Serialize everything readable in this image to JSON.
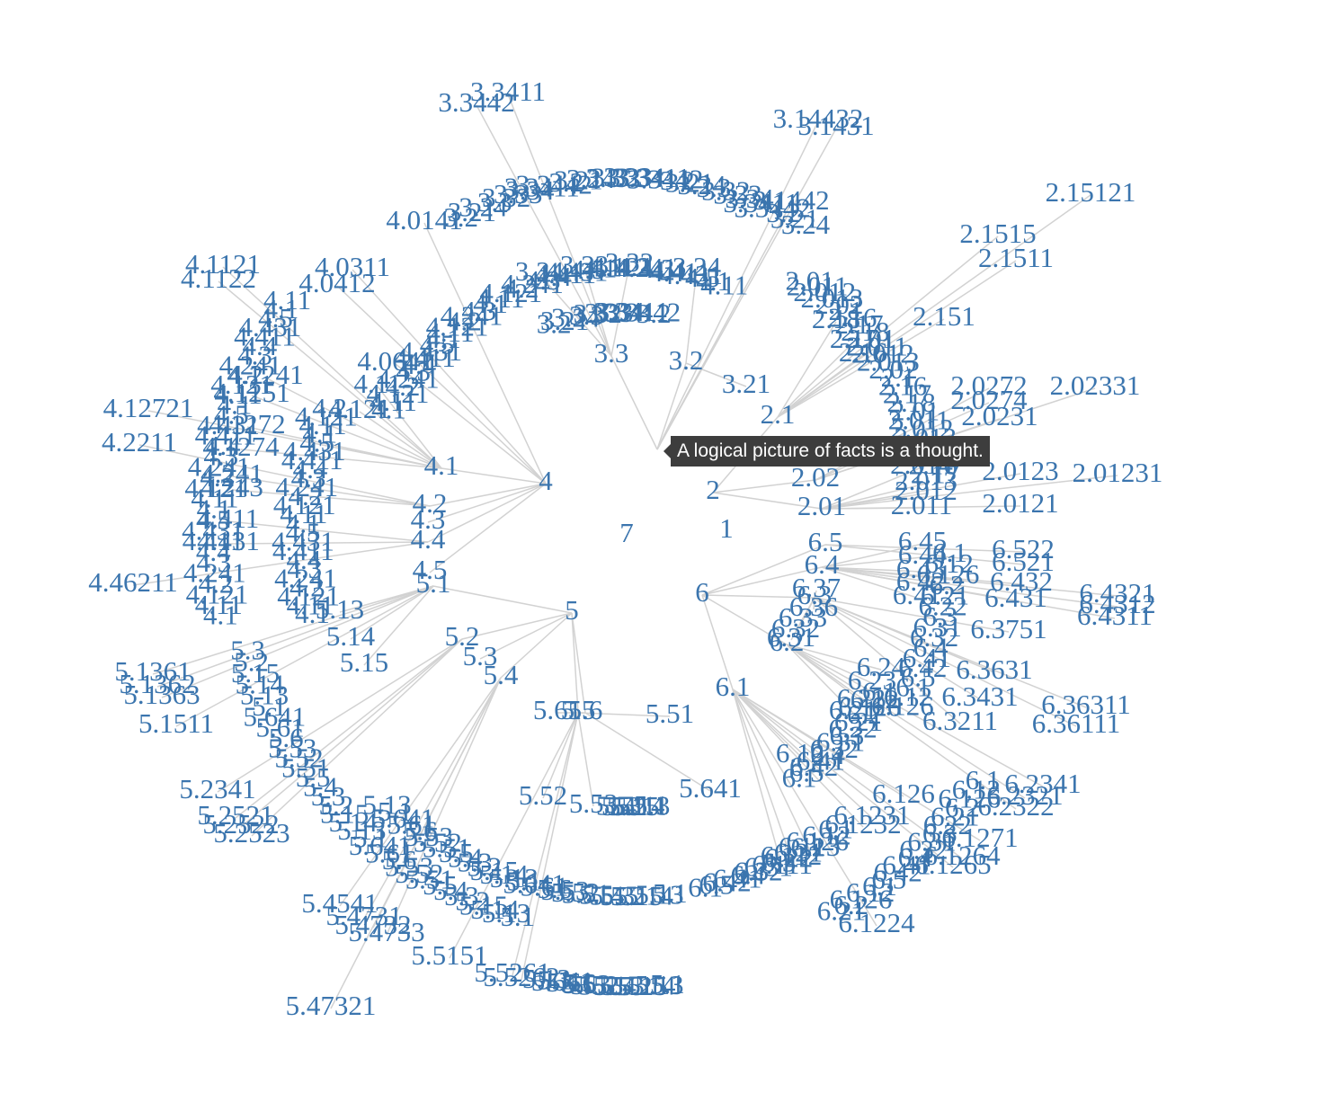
{
  "tooltip": {
    "text": "A logical picture of facts is a thought."
  },
  "colors": {
    "label": "#3b75ae",
    "edge": "#d2d2d2",
    "tooltip_bg": "#3d3d3d"
  },
  "tree": {
    "root": "7",
    "first_level": [
      "1",
      "2",
      "3",
      "4",
      "5",
      "6"
    ],
    "second_level": {
      "2": [
        "2.01",
        "2.02",
        "2.1"
      ],
      "3": [
        "3.2",
        "3.3"
      ],
      "4": [
        "4.1",
        "4.2",
        "4.3",
        "4.4",
        "4.5"
      ],
      "5": [
        "5.1",
        "5.2",
        "5.3",
        "5.4",
        "5.5",
        "5.6"
      ],
      "6": [
        "6.1",
        "6.2",
        "6.3",
        "6.4",
        "6.5"
      ]
    },
    "outer_labels": [
      "2.15121",
      "2.1515",
      "2.1511",
      "2.151",
      "2.02331",
      "2.0272",
      "2.0274",
      "2.0231",
      "2.0123",
      "2.0121",
      "2.01231",
      "2.011",
      "2.012",
      "2.013",
      "2.014",
      "2.16",
      "2.17",
      "2.18",
      "3.14432",
      "3.1431",
      "3.1442",
      "3.32",
      "3.33",
      "3.34",
      "3.24",
      "3.21",
      "3.3442",
      "3.3411",
      "4.0141",
      "4.0311",
      "4.0412",
      "4.0641",
      "4.1121",
      "4.1122",
      "4.11",
      "4.121",
      "4.12721",
      "4.2211",
      "4.241",
      "4.243",
      "4.411",
      "4.431",
      "4.46211",
      "4.1241",
      "4.1251",
      "4.1272",
      "4.1274",
      "5.1511",
      "5.1361",
      "5.1362",
      "5.1363",
      "5.13",
      "5.14",
      "5.15",
      "5.2341",
      "5.2521",
      "5.2522",
      "5.2523",
      "5.4541",
      "5.4731",
      "5.4732",
      "5.4733",
      "5.47321",
      "5.5151",
      "5.5261",
      "5.5262",
      "5.52",
      "5.53",
      "5.51",
      "5.61",
      "5.641",
      "6.522",
      "6.521",
      "6.432",
      "6.431",
      "6.4321",
      "6.4312",
      "6.4311",
      "6.3751",
      "6.3631",
      "6.36311",
      "6.36111",
      "6.3431",
      "6.3211",
      "6.2341",
      "6.2321",
      "6.2322",
      "6.1271",
      "6.1264",
      "6.1265",
      "6.1224",
      "6.12",
      "6.126",
      "6.1231",
      "6.1232",
      "6.111",
      "6.112",
      "6.113",
      "6.37",
      "6.36",
      "6.33",
      "6.32",
      "6.31",
      "6.21",
      "6.22",
      "6.23",
      "6.24",
      "6.41",
      "6.42",
      "6.43",
      "6.44",
      "6.45"
    ]
  }
}
